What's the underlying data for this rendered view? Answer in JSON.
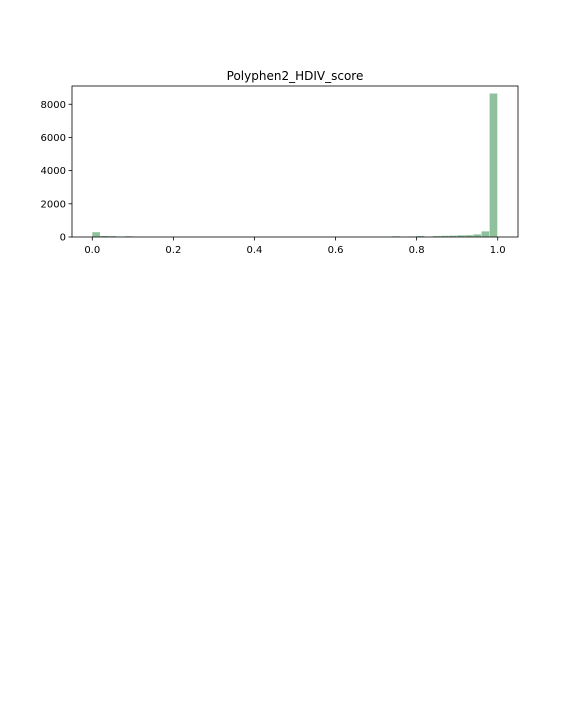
{
  "chart_data": {
    "type": "bar",
    "title": "Polyphen2_HDIV_score",
    "xlabel": "",
    "ylabel": "",
    "xlim": [
      -0.05,
      1.05
    ],
    "ylim": [
      0,
      9100
    ],
    "grid": false,
    "legend": "none",
    "bar_color": "#8fc29c",
    "bin_width": 0.019,
    "x_ticks": [
      0.0,
      0.2,
      0.4,
      0.6,
      0.8,
      1.0
    ],
    "x_tick_labels": [
      "0.0",
      "0.2",
      "0.4",
      "0.6",
      "0.8",
      "1.0"
    ],
    "y_ticks": [
      0,
      2000,
      4000,
      6000,
      8000
    ],
    "y_tick_labels": [
      "0",
      "2000",
      "4000",
      "6000",
      "8000"
    ],
    "bins": [
      {
        "x": 0.0,
        "value": 290
      },
      {
        "x": 0.02,
        "value": 60
      },
      {
        "x": 0.04,
        "value": 50
      },
      {
        "x": 0.06,
        "value": 15
      },
      {
        "x": 0.08,
        "value": 45
      },
      {
        "x": 0.1,
        "value": 15
      },
      {
        "x": 0.74,
        "value": 45
      },
      {
        "x": 0.78,
        "value": 30
      },
      {
        "x": 0.8,
        "value": 60
      },
      {
        "x": 0.84,
        "value": 55
      },
      {
        "x": 0.86,
        "value": 70
      },
      {
        "x": 0.88,
        "value": 80
      },
      {
        "x": 0.9,
        "value": 100
      },
      {
        "x": 0.92,
        "value": 110
      },
      {
        "x": 0.94,
        "value": 160
      },
      {
        "x": 0.96,
        "value": 340
      },
      {
        "x": 0.98,
        "value": 8650
      }
    ]
  }
}
